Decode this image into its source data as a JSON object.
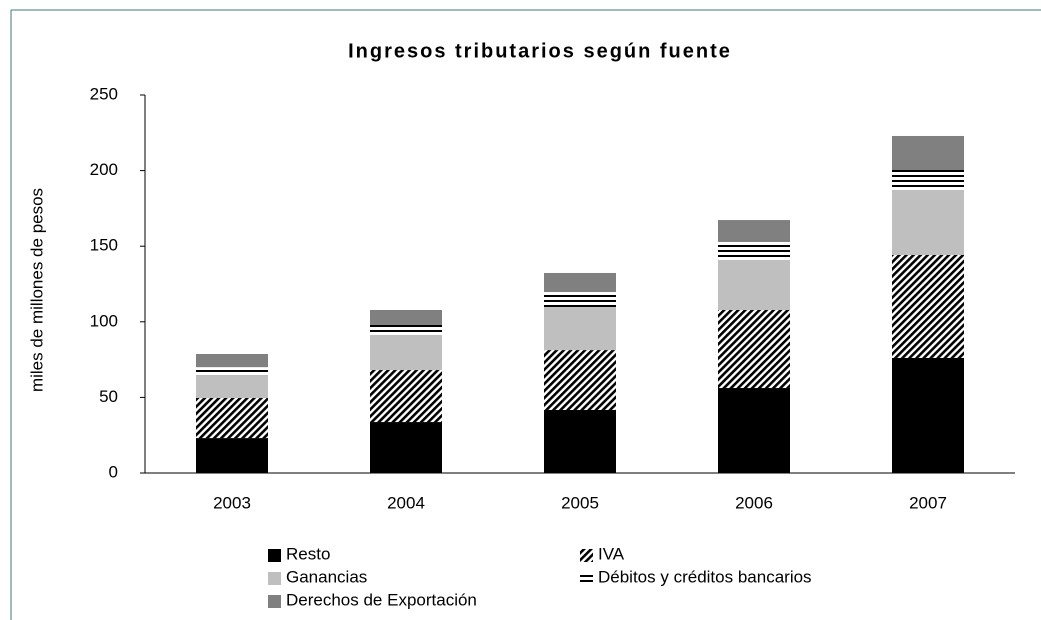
{
  "chart_data": {
    "type": "stacked_bar",
    "title": "Ingresos tributarios según fuente",
    "ylabel": "miles de millones de pesos",
    "categories": [
      "2003",
      "2004",
      "2005",
      "2006",
      "2007"
    ],
    "series": [
      {
        "name": "Resto",
        "color": "#000000",
        "pattern": "solid",
        "values": [
          23.1,
          33.7,
          41.7,
          56.2,
          76.1
        ]
      },
      {
        "name": "IVA",
        "color": "#000000",
        "pattern": "diagonal",
        "values": [
          26.5,
          34.4,
          39.6,
          51.6,
          68.1
        ]
      },
      {
        "name": "Ganancias",
        "color": "#bfbfbf",
        "pattern": "solid",
        "values": [
          15.2,
          23.2,
          28.5,
          33.1,
          43.0
        ]
      },
      {
        "name": "Débitos y créditos bancarios",
        "color": "#000000",
        "pattern": "horizontal",
        "values": [
          5.2,
          6.6,
          9.9,
          11.9,
          13.2
        ]
      },
      {
        "name": "Derechos de Exportación",
        "color": "#808080",
        "pattern": "solid",
        "values": [
          8.7,
          9.9,
          12.6,
          14.5,
          22.5
        ]
      }
    ],
    "ylim": [
      0,
      250
    ],
    "yticks": [
      0,
      50,
      100,
      150,
      200,
      250
    ],
    "grid": false,
    "legend": "bottom"
  }
}
